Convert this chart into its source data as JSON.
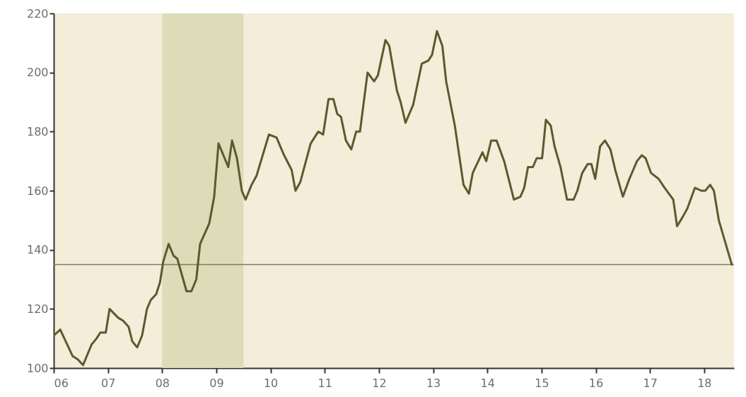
{
  "chart_data": {
    "type": "line",
    "x": [
      2006.0,
      2006.12,
      2006.35,
      2006.44,
      2006.54,
      2006.7,
      2006.79,
      2006.86,
      2006.96,
      2007.03,
      2007.19,
      2007.28,
      2007.38,
      2007.45,
      2007.54,
      2007.63,
      2007.72,
      2007.79,
      2007.89,
      2007.96,
      2008.02,
      2008.12,
      2008.21,
      2008.28,
      2008.45,
      2008.54,
      2008.63,
      2008.7,
      2008.87,
      2008.96,
      2009.04,
      2009.22,
      2009.29,
      2009.38,
      2009.47,
      2009.54,
      2009.65,
      2009.74,
      2009.97,
      2010.11,
      2010.25,
      2010.39,
      2010.46,
      2010.55,
      2010.74,
      2010.88,
      2010.97,
      2011.07,
      2011.16,
      2011.23,
      2011.3,
      2011.39,
      2011.49,
      2011.58,
      2011.65,
      2011.79,
      2011.91,
      2011.98,
      2012.12,
      2012.19,
      2012.33,
      2012.4,
      2012.49,
      2012.63,
      2012.79,
      2012.91,
      2012.98,
      2013.07,
      2013.17,
      2013.24,
      2013.4,
      2013.56,
      2013.66,
      2013.73,
      2013.91,
      2013.98,
      2014.07,
      2014.17,
      2014.31,
      2014.49,
      2014.61,
      2014.68,
      2014.75,
      2014.84,
      2014.91,
      2015.01,
      2015.08,
      2015.17,
      2015.24,
      2015.35,
      2015.47,
      2015.59,
      2015.66,
      2015.75,
      2015.85,
      2015.92,
      2015.99,
      2016.08,
      2016.17,
      2016.27,
      2016.36,
      2016.5,
      2016.62,
      2016.76,
      2016.85,
      2016.92,
      2017.02,
      2017.16,
      2017.27,
      2017.39,
      2017.43,
      2017.5,
      2017.6,
      2017.69,
      2017.83,
      2017.95,
      2018.02,
      2018.11,
      2018.18,
      2018.27,
      2018.51
    ],
    "series": [
      {
        "color": "#5b5a2e",
        "values": [
          111,
          113,
          104,
          103,
          101,
          108,
          110,
          112,
          112,
          120,
          117,
          116,
          114,
          109,
          107,
          111,
          120,
          123,
          125,
          129,
          136,
          142,
          138,
          137,
          126,
          126,
          130,
          142,
          149,
          158,
          176,
          168,
          177,
          171,
          160,
          157,
          162,
          165,
          179,
          178,
          172,
          167,
          160,
          163,
          176,
          180,
          179,
          191,
          191,
          186,
          185,
          177,
          174,
          180,
          180,
          200,
          197,
          199,
          211,
          209,
          194,
          190,
          183,
          189,
          203,
          204,
          206,
          214,
          209,
          197,
          182,
          162,
          159,
          166,
          173,
          170,
          177,
          177,
          170,
          157,
          158,
          161,
          168,
          168,
          171,
          171,
          184,
          182,
          175,
          168,
          157,
          157,
          160,
          166,
          169,
          169,
          164,
          175,
          177,
          174,
          167,
          158,
          164,
          170,
          172,
          171,
          166,
          164,
          161,
          158,
          157,
          148,
          151,
          154,
          161,
          160,
          160,
          162,
          160,
          150,
          135
        ]
      }
    ],
    "xlim": [
      2006,
      2018.55
    ],
    "xticks": [
      {
        "value": 2006,
        "label": "06"
      },
      {
        "value": 2007,
        "label": "07"
      },
      {
        "value": 2008,
        "label": "08"
      },
      {
        "value": 2009,
        "label": "09"
      },
      {
        "value": 2010,
        "label": "10"
      },
      {
        "value": 2011,
        "label": "11"
      },
      {
        "value": 2012,
        "label": "12"
      },
      {
        "value": 2013,
        "label": "13"
      },
      {
        "value": 2014,
        "label": "14"
      },
      {
        "value": 2015,
        "label": "15"
      },
      {
        "value": 2016,
        "label": "16"
      },
      {
        "value": 2017,
        "label": "17"
      },
      {
        "value": 2018,
        "label": "18"
      }
    ],
    "ylim": [
      100,
      220
    ],
    "yticks": [
      100,
      120,
      140,
      160,
      180,
      200,
      220
    ],
    "bands": [
      {
        "axis": "x",
        "from": 2008,
        "to": 2009.5,
        "color": "#dcdcb9"
      }
    ],
    "ref_lines": [
      {
        "axis": "y",
        "value": 135,
        "color": "#7b7b5e"
      }
    ]
  }
}
